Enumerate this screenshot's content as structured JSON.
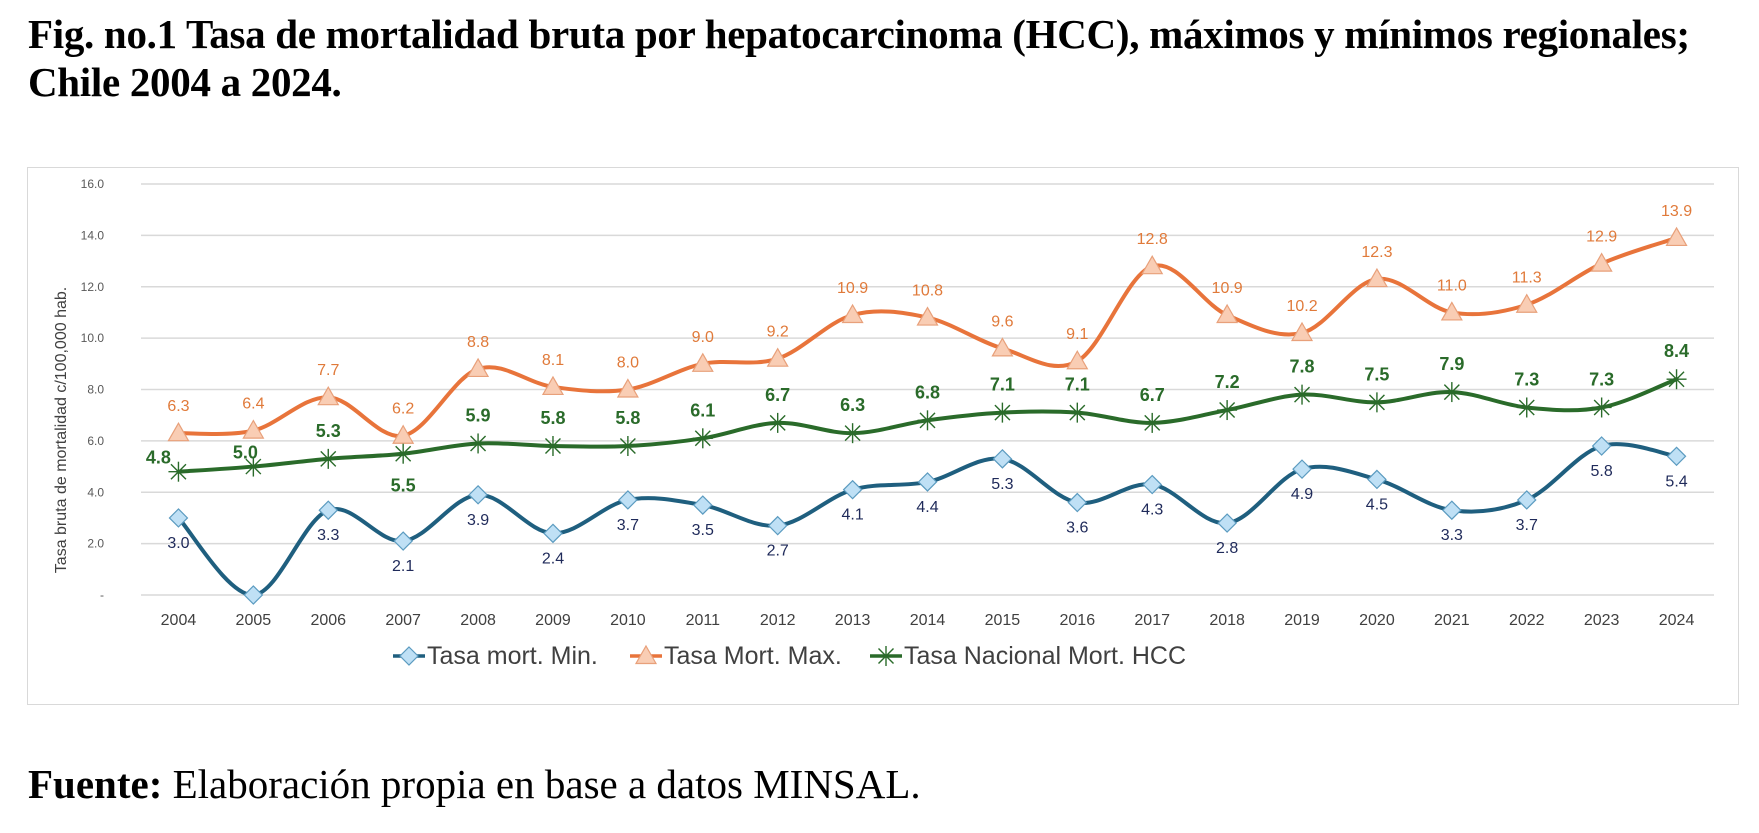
{
  "figure": {
    "title": "Fig. no.1 Tasa de mortalidad bruta por hepatocarcinoma (HCC), máximos y mínimos regionales; Chile 2004 a 2024.",
    "source_label": "Fuente:",
    "source_text": " Elaboración propia en base a datos MINSAL."
  },
  "chart_data": {
    "type": "line",
    "title": "Fig. no.1 Tasa de mortalidad bruta por hepatocarcinoma (HCC), máximos y mínimos regionales; Chile 2004 a 2024.",
    "xlabel": "",
    "ylabel": "Tasa bruta de mortalidad c/100,000 hab.",
    "ylim": [
      0,
      16
    ],
    "yticks": [
      0,
      2,
      4,
      6,
      8,
      10,
      12,
      14,
      16
    ],
    "ytick_labels": [
      "-",
      "2.0",
      "4.0",
      "6.0",
      "8.0",
      "10.0",
      "12.0",
      "14.0",
      "16.0"
    ],
    "grid": true,
    "smooth": true,
    "legend_position": "bottom",
    "categories": [
      "2004",
      "2005",
      "2006",
      "2007",
      "2008",
      "2009",
      "2010",
      "2011",
      "2012",
      "2013",
      "2014",
      "2015",
      "2016",
      "2017",
      "2018",
      "2019",
      "2020",
      "2021",
      "2022",
      "2023",
      "2024"
    ],
    "series": [
      {
        "name": "Tasa mort. Min.",
        "key": "min",
        "color": "#1f5f7f",
        "marker": "diamond",
        "marker_fill": "#bfe0f5",
        "label_color": "#1f2a5a",
        "values": [
          3.0,
          0.0,
          3.3,
          2.1,
          3.9,
          2.4,
          3.7,
          3.5,
          2.7,
          4.1,
          4.4,
          5.3,
          3.6,
          4.3,
          2.8,
          4.9,
          4.5,
          3.3,
          3.7,
          5.8,
          5.4
        ],
        "show_labels": [
          true,
          false,
          true,
          true,
          true,
          true,
          true,
          true,
          true,
          true,
          true,
          true,
          true,
          true,
          true,
          true,
          true,
          true,
          true,
          true,
          true
        ]
      },
      {
        "name": "Tasa Mort. Max.",
        "key": "max",
        "color": "#e8743b",
        "marker": "triangle",
        "marker_fill": "#f9cdb4",
        "label_color": "#e07a3a",
        "values": [
          6.3,
          6.4,
          7.7,
          6.2,
          8.8,
          8.1,
          8.0,
          9.0,
          9.2,
          10.9,
          10.8,
          9.6,
          9.1,
          12.8,
          10.9,
          10.2,
          12.3,
          11.0,
          11.3,
          12.9,
          13.9
        ],
        "show_labels": [
          true,
          true,
          true,
          true,
          true,
          true,
          true,
          true,
          true,
          true,
          true,
          true,
          true,
          true,
          true,
          true,
          true,
          true,
          true,
          true,
          true
        ]
      },
      {
        "name": "Tasa Nacional Mort. HCC",
        "key": "nat",
        "color": "#2a6b2a",
        "marker": "asterisk",
        "marker_fill": "#2a6b2a",
        "label_color": "#2a6b2a",
        "values": [
          4.8,
          5.0,
          5.3,
          5.5,
          5.9,
          5.8,
          5.8,
          6.1,
          6.7,
          6.3,
          6.8,
          7.1,
          7.1,
          6.7,
          7.2,
          7.8,
          7.5,
          7.9,
          7.3,
          7.3,
          8.4
        ],
        "show_labels": [
          true,
          true,
          true,
          true,
          true,
          true,
          true,
          true,
          true,
          true,
          true,
          true,
          true,
          true,
          true,
          true,
          true,
          true,
          true,
          true,
          true
        ]
      }
    ]
  }
}
